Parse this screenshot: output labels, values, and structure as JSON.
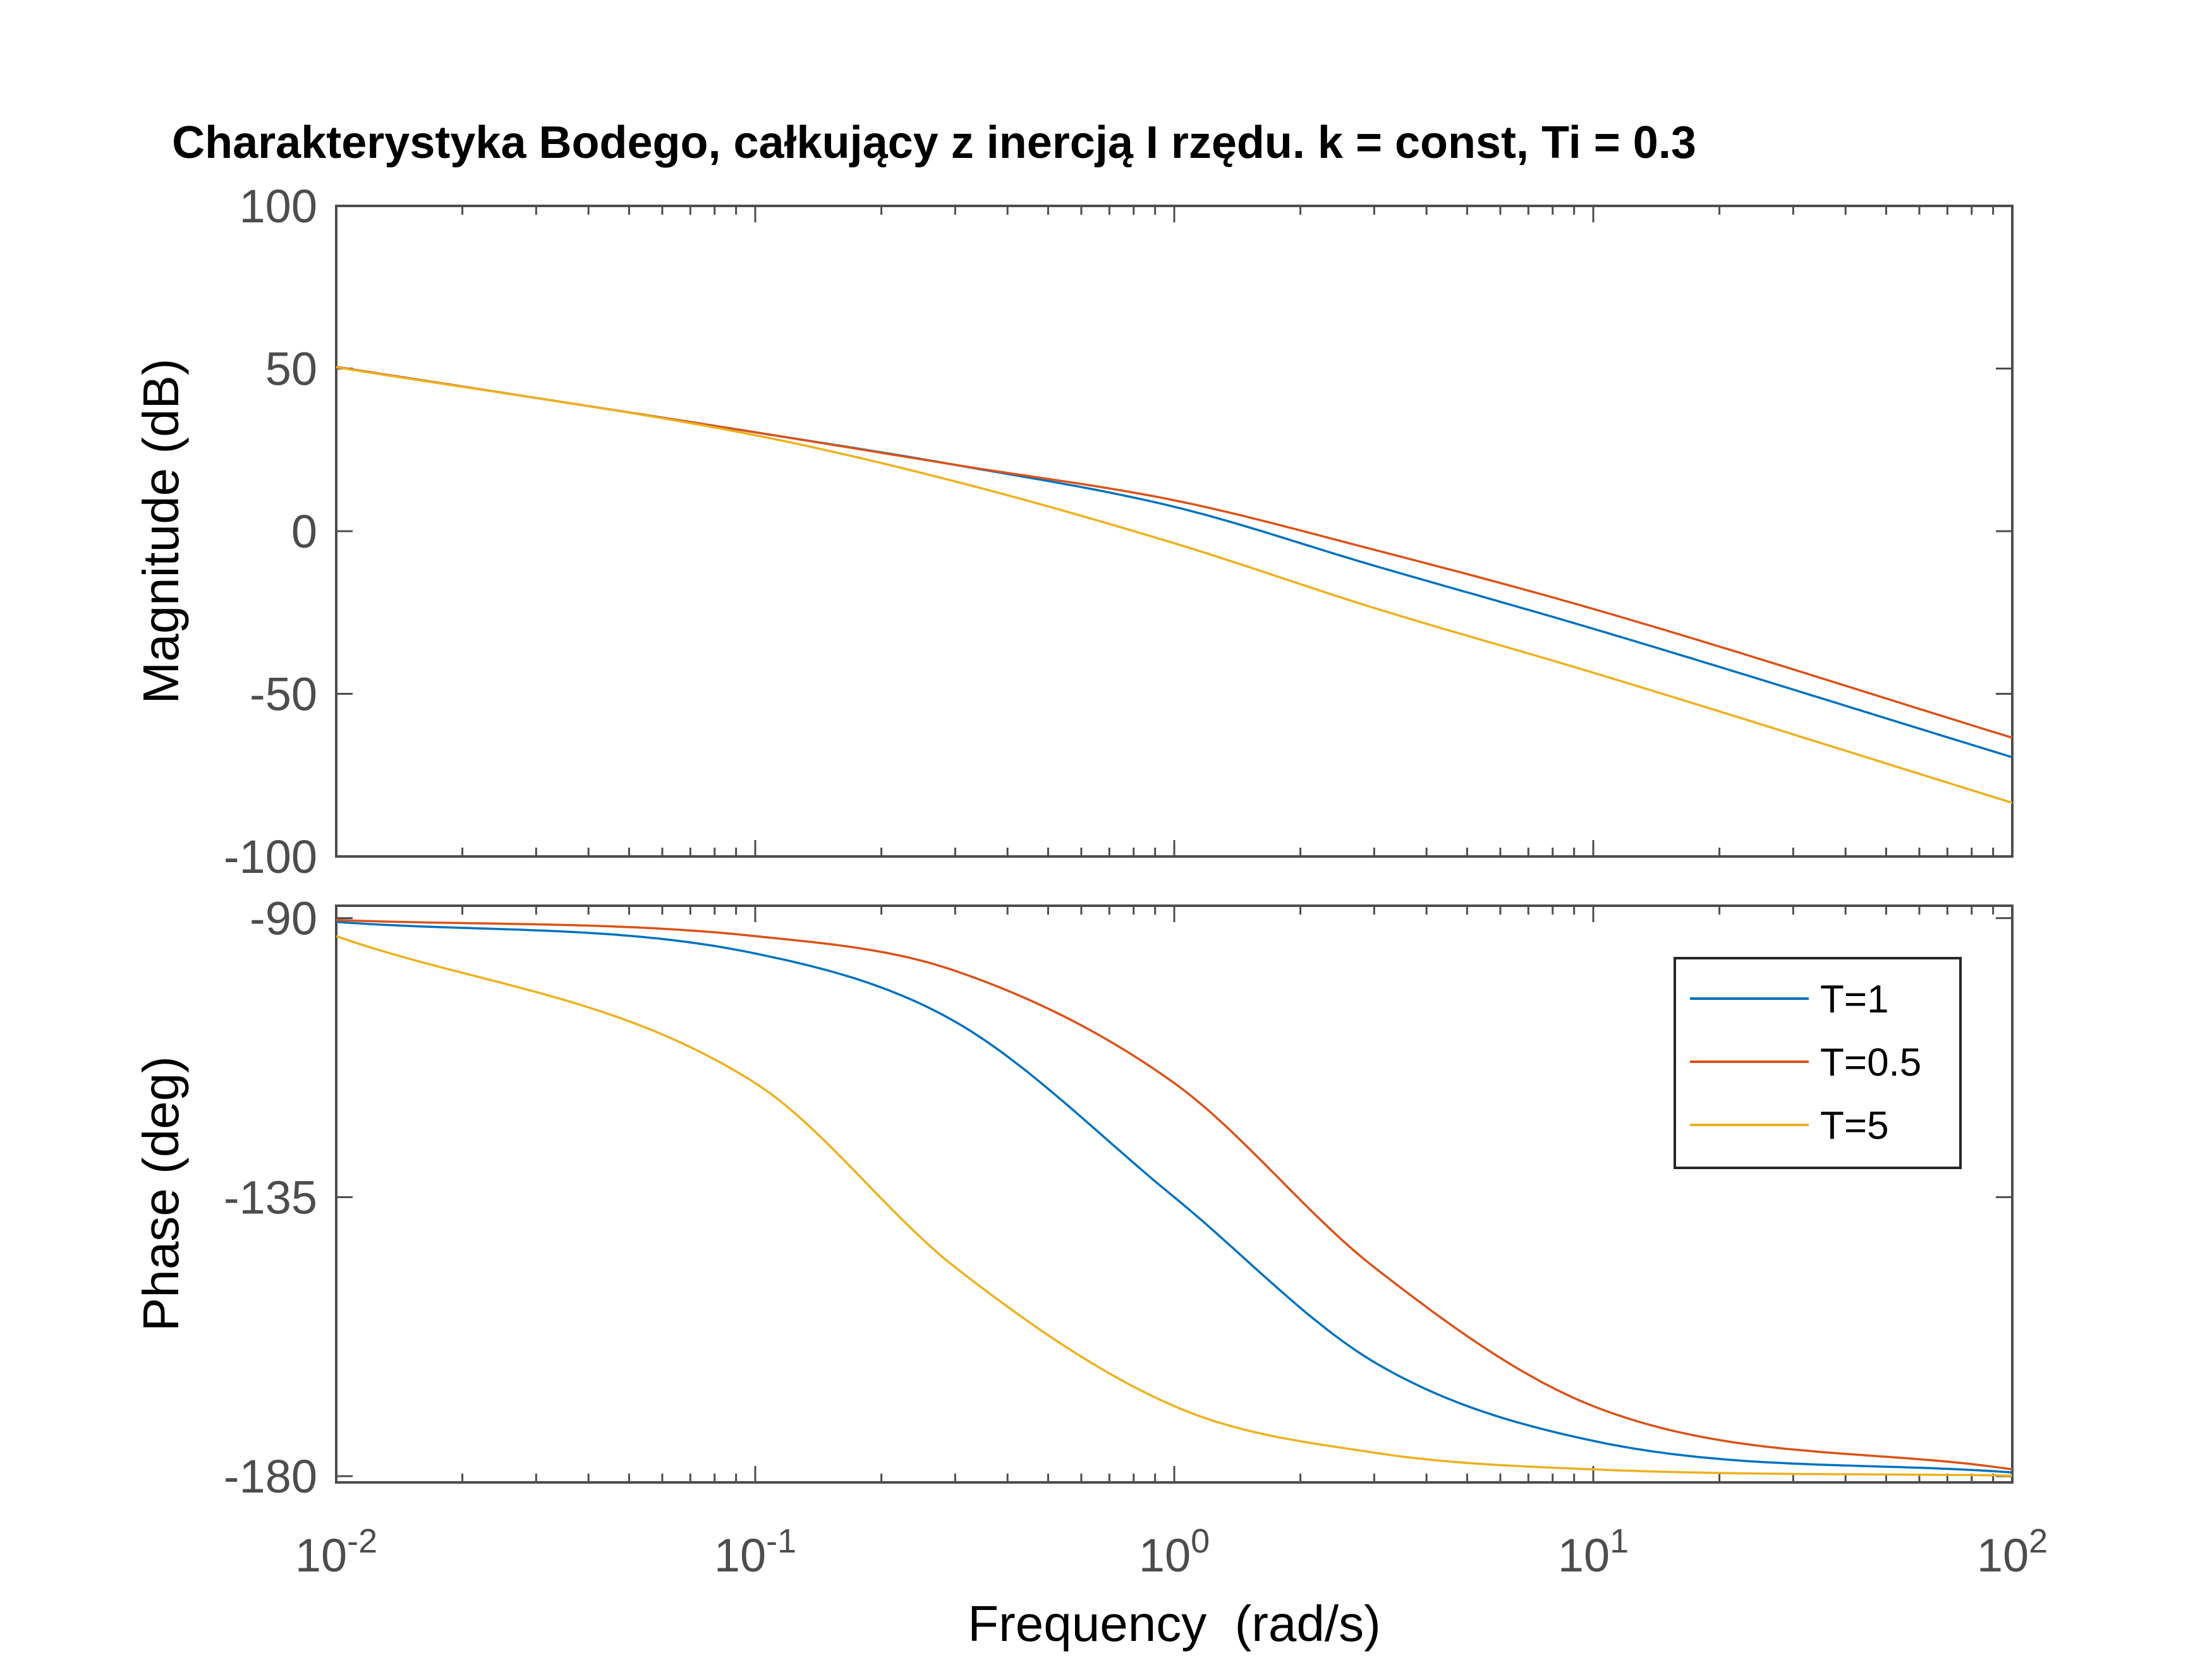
{
  "chart_data": {
    "type": "line",
    "title": "Charakterystyka Bodego, całkujący z inercją I rzędu. k = const, Ti = 0.3",
    "xlabel": "Frequency  (rad/s)",
    "xscale": "log",
    "xlim": [
      0.01,
      100
    ],
    "x_ticks": [
      {
        "value": 0.01,
        "base": "10",
        "exp": "-2"
      },
      {
        "value": 0.1,
        "base": "10",
        "exp": "-1"
      },
      {
        "value": 1,
        "base": "10",
        "exp": "0"
      },
      {
        "value": 10,
        "base": "10",
        "exp": "1"
      },
      {
        "value": 100,
        "base": "10",
        "exp": "2"
      }
    ],
    "grid": false,
    "legend_location": "top-right of phase plot",
    "panels": [
      {
        "name": "magnitude",
        "ylabel": "Magnitude (dB)",
        "ylim": [
          -100,
          100
        ],
        "y_ticks": [
          100,
          50,
          0,
          -50,
          -100
        ],
        "y_tick_labels": [
          "100",
          "50",
          "0",
          "-50",
          "-100"
        ]
      },
      {
        "name": "phase",
        "ylabel": "Phase (deg)",
        "ylim": [
          -181,
          -88
        ],
        "y_ticks": [
          -90,
          -135,
          -180
        ],
        "y_tick_labels": [
          "-90",
          "-135",
          "-180"
        ]
      }
    ],
    "series": [
      {
        "name": "T=1",
        "color": "#0072bd",
        "magnitude_db": [
          [
            0.01,
            50.5
          ],
          [
            0.1,
            30.4
          ],
          [
            0.3,
            20.4
          ],
          [
            1,
            7.5
          ],
          [
            3,
            -10.6
          ],
          [
            10,
            -30.0
          ],
          [
            100,
            -69.5
          ]
        ],
        "phase_deg": [
          [
            0.01,
            -90.6
          ],
          [
            0.1,
            -95.7
          ],
          [
            0.3,
            -106.7
          ],
          [
            1,
            -135.0
          ],
          [
            3,
            -161.6
          ],
          [
            10,
            -174.3
          ],
          [
            100,
            -179.4
          ]
        ]
      },
      {
        "name": "T=0.5",
        "color": "#d95319",
        "magnitude_db": [
          [
            0.01,
            50.5
          ],
          [
            0.1,
            30.4
          ],
          [
            0.3,
            20.4
          ],
          [
            1,
            9.5
          ],
          [
            3,
            -5.7
          ],
          [
            10,
            -23.9
          ],
          [
            100,
            -63.5
          ]
        ],
        "phase_deg": [
          [
            0.01,
            -90.3
          ],
          [
            0.1,
            -92.9
          ],
          [
            0.3,
            -98.5
          ],
          [
            1,
            -116.6
          ],
          [
            3,
            -146.3
          ],
          [
            10,
            -168.7
          ],
          [
            100,
            -178.9
          ]
        ]
      },
      {
        "name": "T=5",
        "color": "#edb120",
        "magnitude_db": [
          [
            0.01,
            50.4
          ],
          [
            0.1,
            29.5
          ],
          [
            0.3,
            15.3
          ],
          [
            1,
            -3.7
          ],
          [
            3,
            -23.6
          ],
          [
            10,
            -43.5
          ],
          [
            100,
            -83.5
          ]
        ],
        "phase_deg": [
          [
            0.01,
            -92.9
          ],
          [
            0.1,
            -116.6
          ],
          [
            0.3,
            -146.3
          ],
          [
            1,
            -168.7
          ],
          [
            3,
            -176.2
          ],
          [
            10,
            -178.9
          ],
          [
            100,
            -179.9
          ]
        ]
      }
    ]
  }
}
